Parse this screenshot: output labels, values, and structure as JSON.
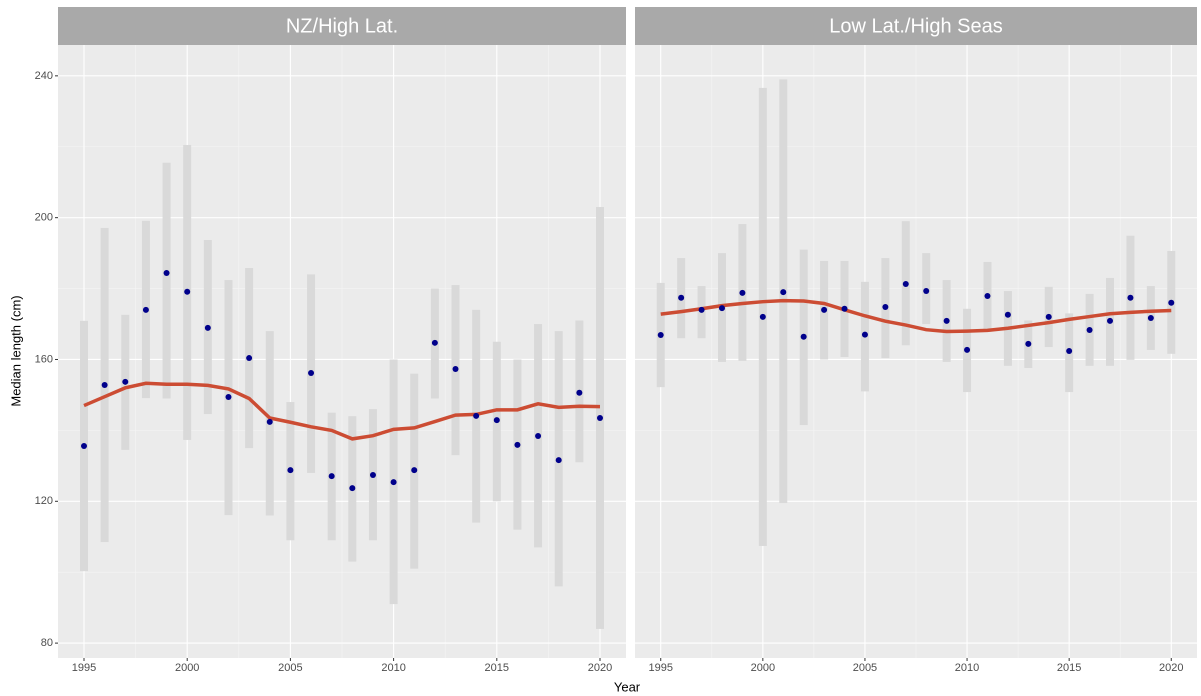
{
  "chart_data": {
    "type": "faceted-range",
    "x_label": "Year",
    "y_label": "Median length (cm)",
    "xlim": [
      1993.74,
      2021.26
    ],
    "ylim": [
      75.8,
      248.7
    ],
    "xticks": [
      1995,
      2000,
      2005,
      2010,
      2015,
      2020
    ],
    "yticks": [
      80,
      120,
      160,
      200,
      240
    ],
    "grid": true,
    "point_color": "#00008b",
    "range_color": "#d9d9d9",
    "smooth_color": "#cc4c33",
    "x": [
      1995,
      1996,
      1997,
      1998,
      1999,
      2000,
      2001,
      2002,
      2003,
      2004,
      2005,
      2006,
      2007,
      2008,
      2009,
      2010,
      2011,
      2012,
      2013,
      2014,
      2015,
      2016,
      2017,
      2018,
      2019,
      2020
    ],
    "panels": [
      {
        "title": "NZ/High Lat.",
        "points": [
          135.6,
          152.8,
          153.7,
          174.0,
          184.4,
          179.1,
          168.9,
          149.4,
          160.4,
          142.4,
          128.8,
          156.2,
          127.1,
          123.7,
          127.4,
          125.4,
          128.8,
          164.7,
          157.3,
          144.1,
          142.9,
          135.9,
          138.4,
          131.6,
          150.6,
          143.5
        ],
        "range_low": [
          100.3,
          108.5,
          134.5,
          149.1,
          149,
          137.3,
          144.6,
          116.1,
          135.0,
          116,
          109,
          128,
          109,
          103,
          109,
          91,
          101,
          149,
          133,
          114,
          120,
          112,
          107,
          96,
          131,
          84
        ],
        "range_high": [
          170.9,
          197.1,
          172.6,
          199.1,
          215.5,
          220.5,
          193.7,
          182.4,
          185.8,
          168,
          148,
          184,
          145,
          144,
          146,
          160,
          156,
          180,
          181,
          174,
          165,
          160,
          170,
          168,
          171,
          203
        ],
        "smooth": [
          147,
          149.5,
          152,
          153.3,
          153,
          153,
          152.7,
          151.7,
          149,
          143.5,
          142.3,
          141,
          140,
          137.6,
          138.5,
          140.3,
          140.7,
          142.5,
          144.3,
          144.5,
          145.8,
          145.8,
          147.5,
          146.5,
          146.8,
          146.7
        ]
      },
      {
        "title": "Low Lat./High Seas",
        "points": [
          166.9,
          177.4,
          174,
          174.5,
          178.8,
          172,
          179,
          166.4,
          174,
          174.3,
          167,
          174.8,
          181.3,
          179.3,
          170.9,
          162.7,
          177.9,
          172.6,
          164.4,
          172,
          162.4,
          168.3,
          170.9,
          177.4,
          171.7,
          176
        ],
        "range_low": [
          152.2,
          166,
          166,
          159.3,
          159.6,
          107.4,
          119.5,
          141.5,
          160,
          160.7,
          151,
          160.4,
          164,
          170,
          159.3,
          150.8,
          167.8,
          158.2,
          157.6,
          163.5,
          150.8,
          158.2,
          158.2,
          159.9,
          162.7,
          161.6
        ],
        "range_high": [
          181.6,
          188.6,
          180.7,
          190,
          198.2,
          236.6,
          239,
          191,
          187.8,
          187.8,
          181.9,
          188.6,
          199,
          190,
          182.4,
          174.3,
          187.5,
          179.3,
          171,
          180.5,
          173,
          178.5,
          183,
          194.9,
          180.7,
          190.6
        ],
        "smooth": [
          172.8,
          173.5,
          174.3,
          175.2,
          175.8,
          176.3,
          176.6,
          176.5,
          175.8,
          174,
          172.3,
          170.8,
          169.7,
          168.4,
          167.9,
          168,
          168.2,
          168.8,
          169.6,
          170.4,
          171.3,
          172.1,
          172.9,
          173.3,
          173.6,
          173.8
        ]
      }
    ]
  }
}
